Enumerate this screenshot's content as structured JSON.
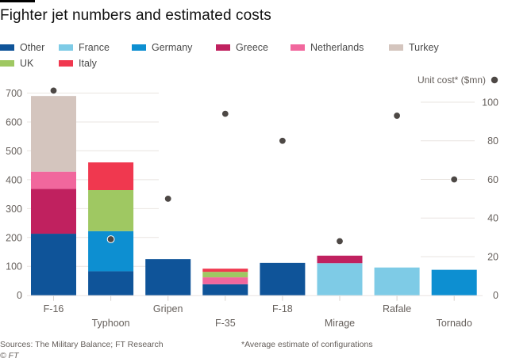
{
  "chart_data": {
    "type": "bar",
    "title": "Fighter jet numbers and estimated costs",
    "stacked": true,
    "categories": [
      "F-16",
      "Typhoon",
      "Gripen",
      "F-35",
      "F-18",
      "Mirage",
      "Rafale",
      "Tornado"
    ],
    "series": [
      {
        "name": "Other",
        "color": "#0f5499",
        "values": [
          213,
          83,
          125,
          38,
          112,
          0,
          0,
          0
        ]
      },
      {
        "name": "France",
        "color": "#7ecbe6",
        "values": [
          0,
          0,
          0,
          0,
          0,
          111,
          96,
          0
        ]
      },
      {
        "name": "Germany",
        "color": "#0d8fd1",
        "values": [
          0,
          139,
          0,
          0,
          0,
          0,
          0,
          88
        ]
      },
      {
        "name": "Greece",
        "color": "#c0215f",
        "values": [
          155,
          0,
          0,
          0,
          0,
          26,
          0,
          0
        ]
      },
      {
        "name": "Netherlands",
        "color": "#f1679d",
        "values": [
          60,
          0,
          0,
          24,
          0,
          0,
          0,
          0
        ]
      },
      {
        "name": "Turkey",
        "color": "#d4c5be",
        "values": [
          262,
          0,
          0,
          0,
          0,
          0,
          0,
          0
        ]
      },
      {
        "name": "UK",
        "color": "#9fc862",
        "values": [
          0,
          142,
          0,
          19,
          0,
          0,
          0,
          0
        ]
      },
      {
        "name": "Italy",
        "color": "#f0384f",
        "values": [
          0,
          96,
          0,
          11,
          0,
          0,
          0,
          0
        ]
      }
    ],
    "stack_order": [
      "Other",
      "France",
      "Germany",
      "Greece",
      "Netherlands",
      "UK",
      "Italy",
      "Turkey"
    ],
    "unit_cost": {
      "name": "Unit cost* ($mn)",
      "color": "#4d4845",
      "values": [
        106,
        29,
        50,
        94,
        80,
        28,
        93,
        60
      ]
    },
    "ylim": [
      0,
      700
    ],
    "yticks": [
      0,
      100,
      200,
      300,
      400,
      500,
      600,
      700
    ],
    "y2lim": [
      0,
      100
    ],
    "y2ticks": [
      0,
      20,
      40,
      60,
      80,
      100
    ],
    "xlabel": "",
    "ylabel": "",
    "y2label": "Unit cost* ($mn)",
    "legend_position": "top-left",
    "grid": true
  },
  "legend": [
    {
      "name": "Other",
      "color": "#0f5499"
    },
    {
      "name": "France",
      "color": "#7ecbe6"
    },
    {
      "name": "Germany",
      "color": "#0d8fd1"
    },
    {
      "name": "Greece",
      "color": "#c0215f"
    },
    {
      "name": "Netherlands",
      "color": "#f1679d"
    },
    {
      "name": "Turkey",
      "color": "#d4c5be"
    },
    {
      "name": "UK",
      "color": "#9fc862"
    },
    {
      "name": "Italy",
      "color": "#f0384f"
    }
  ],
  "footer": {
    "sources": "Sources: The Military Balance; FT Research",
    "note": "*Average estimate of configurations",
    "copyright": "© FT"
  }
}
